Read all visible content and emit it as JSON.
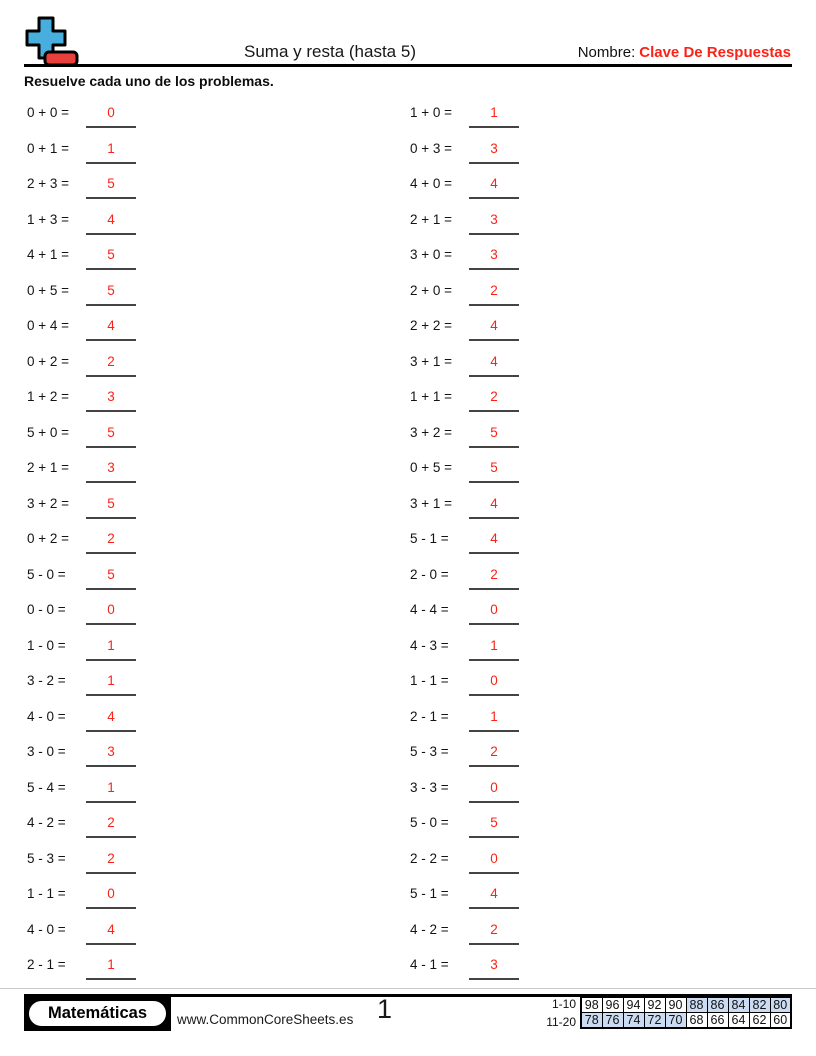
{
  "header": {
    "title": "Suma y resta (hasta 5)",
    "name_label": "Nombre:",
    "name_value": "Clave De Respuestas"
  },
  "instruction": "Resuelve cada uno de los problemas.",
  "problems": {
    "left": [
      {
        "expression": "0 + 0 =",
        "answer": "0"
      },
      {
        "expression": "0 + 1 =",
        "answer": "1"
      },
      {
        "expression": "2 + 3 =",
        "answer": "5"
      },
      {
        "expression": "1 + 3 =",
        "answer": "4"
      },
      {
        "expression": "4 + 1 =",
        "answer": "5"
      },
      {
        "expression": "0 + 5 =",
        "answer": "5"
      },
      {
        "expression": "0 + 4 =",
        "answer": "4"
      },
      {
        "expression": "0 + 2 =",
        "answer": "2"
      },
      {
        "expression": "1 + 2 =",
        "answer": "3"
      },
      {
        "expression": "5 + 0 =",
        "answer": "5"
      },
      {
        "expression": "2 + 1 =",
        "answer": "3"
      },
      {
        "expression": "3 + 2 =",
        "answer": "5"
      },
      {
        "expression": "0 + 2 =",
        "answer": "2"
      },
      {
        "expression": "5 - 0 =",
        "answer": "5"
      },
      {
        "expression": "0 - 0 =",
        "answer": "0"
      },
      {
        "expression": "1 - 0 =",
        "answer": "1"
      },
      {
        "expression": "3 - 2 =",
        "answer": "1"
      },
      {
        "expression": "4 - 0 =",
        "answer": "4"
      },
      {
        "expression": "3 - 0 =",
        "answer": "3"
      },
      {
        "expression": "5 - 4 =",
        "answer": "1"
      },
      {
        "expression": "4 - 2 =",
        "answer": "2"
      },
      {
        "expression": "5 - 3 =",
        "answer": "2"
      },
      {
        "expression": "1 - 1 =",
        "answer": "0"
      },
      {
        "expression": "4 - 0 =",
        "answer": "4"
      },
      {
        "expression": "2 - 1 =",
        "answer": "1"
      }
    ],
    "right": [
      {
        "expression": "1 + 0 =",
        "answer": "1"
      },
      {
        "expression": "0 + 3 =",
        "answer": "3"
      },
      {
        "expression": "4 + 0 =",
        "answer": "4"
      },
      {
        "expression": "2 + 1 =",
        "answer": "3"
      },
      {
        "expression": "3 + 0 =",
        "answer": "3"
      },
      {
        "expression": "2 + 0 =",
        "answer": "2"
      },
      {
        "expression": "2 + 2 =",
        "answer": "4"
      },
      {
        "expression": "3 + 1 =",
        "answer": "4"
      },
      {
        "expression": "1 + 1 =",
        "answer": "2"
      },
      {
        "expression": "3 + 2 =",
        "answer": "5"
      },
      {
        "expression": "0 + 5 =",
        "answer": "5"
      },
      {
        "expression": "3 + 1 =",
        "answer": "4"
      },
      {
        "expression": "5 - 1 =",
        "answer": "4"
      },
      {
        "expression": "2 - 0 =",
        "answer": "2"
      },
      {
        "expression": "4 - 4 =",
        "answer": "0"
      },
      {
        "expression": "4 - 3 =",
        "answer": "1"
      },
      {
        "expression": "1 - 1 =",
        "answer": "0"
      },
      {
        "expression": "2 - 1 =",
        "answer": "1"
      },
      {
        "expression": "5 - 3 =",
        "answer": "2"
      },
      {
        "expression": "3 - 3 =",
        "answer": "0"
      },
      {
        "expression": "5 - 0 =",
        "answer": "5"
      },
      {
        "expression": "2 - 2 =",
        "answer": "0"
      },
      {
        "expression": "5 - 1 =",
        "answer": "4"
      },
      {
        "expression": "4 - 2 =",
        "answer": "2"
      },
      {
        "expression": "4 - 1 =",
        "answer": "3"
      }
    ]
  },
  "footer": {
    "brand": "Matemáticas",
    "website": "www.CommonCoreSheets.es",
    "page_number": "1",
    "score_table": {
      "rows": [
        {
          "label": "1-10",
          "values": [
            "98",
            "96",
            "94",
            "92",
            "90",
            "88",
            "86",
            "84",
            "82",
            "80"
          ],
          "highlighted": [
            5,
            6,
            7,
            8,
            9
          ]
        },
        {
          "label": "11-20",
          "values": [
            "78",
            "76",
            "74",
            "72",
            "70",
            "68",
            "66",
            "64",
            "62",
            "60"
          ],
          "highlighted": [
            0,
            1,
            2,
            3,
            4
          ]
        }
      ]
    }
  },
  "colors": {
    "answer_red": "#fb2318",
    "icon_blue": "#47aedd",
    "icon_red": "#e8403a",
    "highlight_blue": "#cbdcf2"
  }
}
